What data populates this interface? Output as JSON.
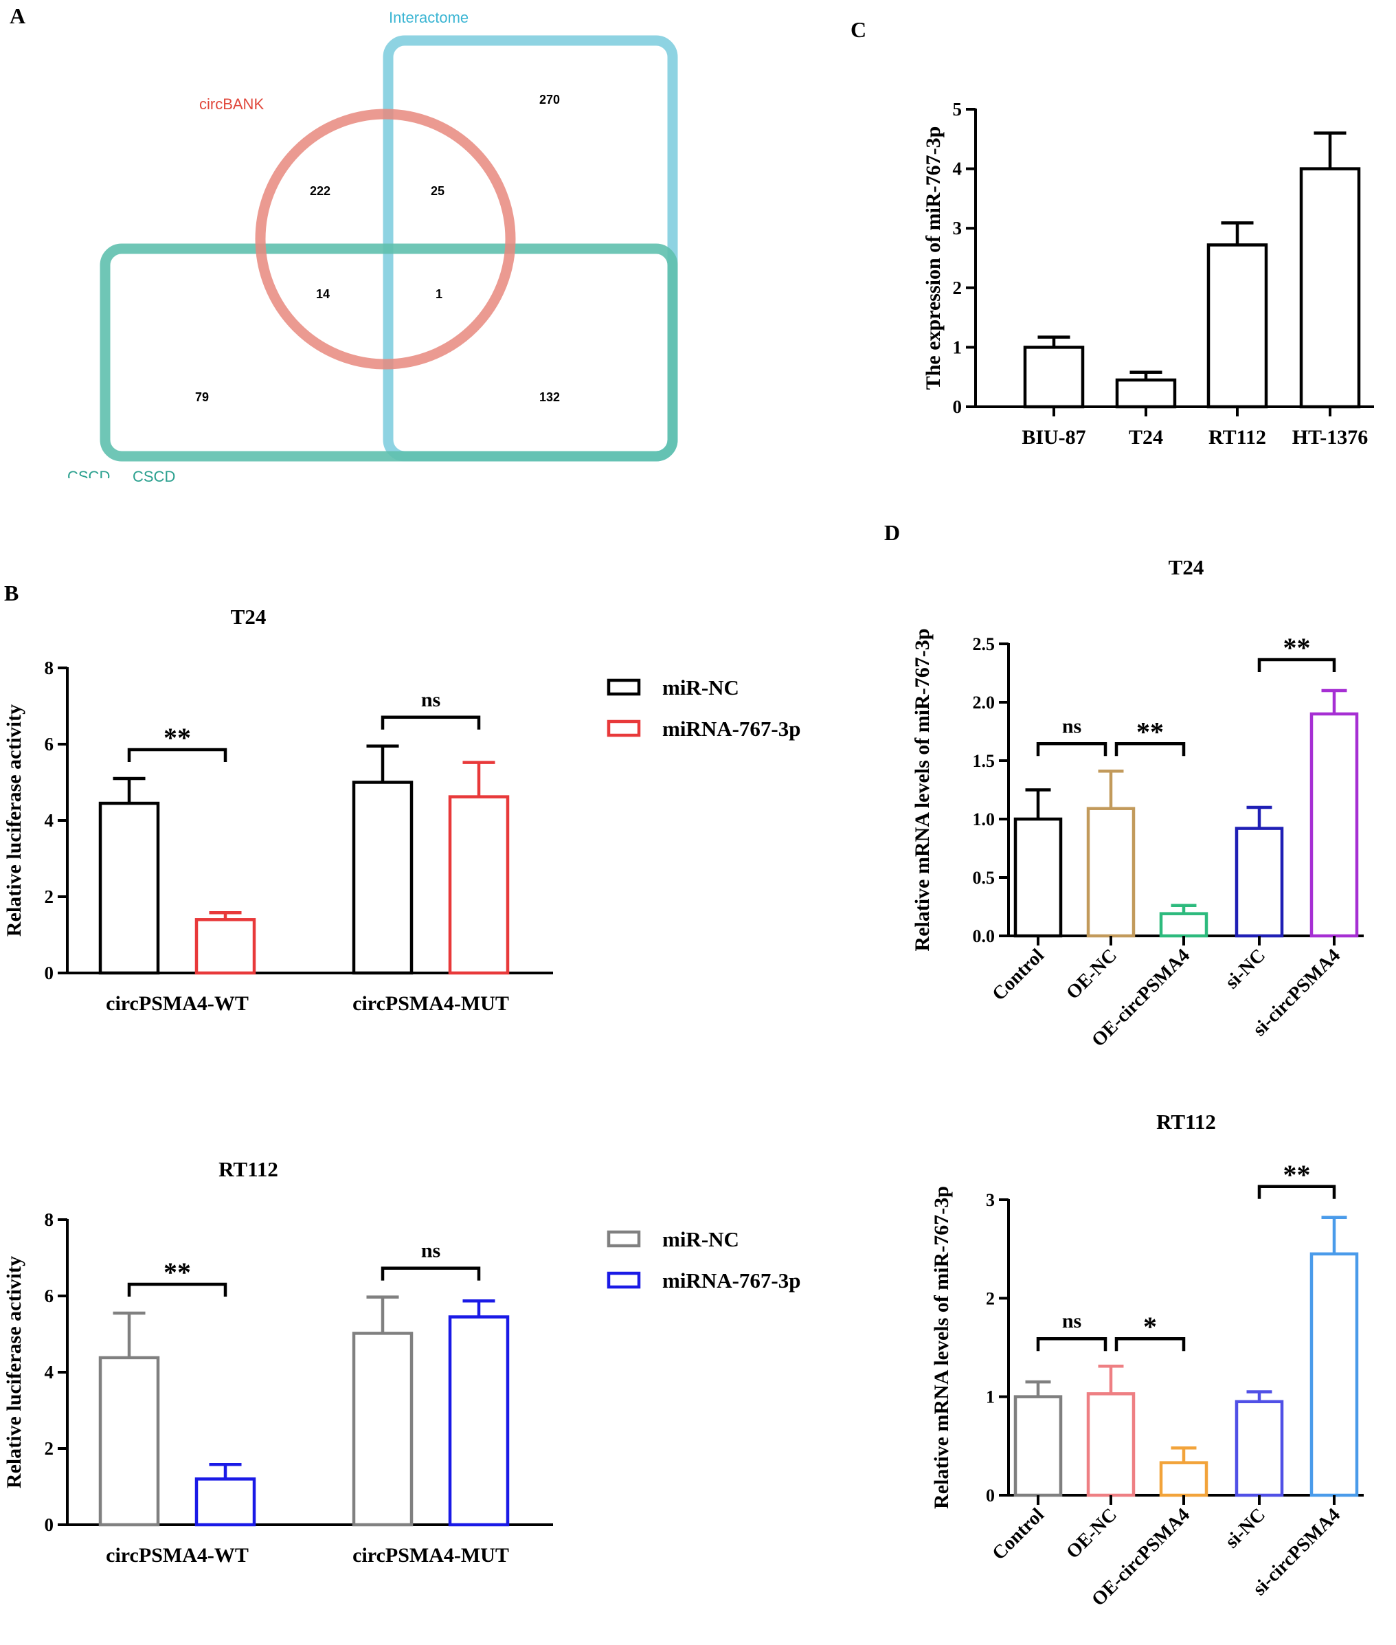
{
  "panels": {
    "A": "A",
    "B": "B",
    "C": "C",
    "D": "D"
  },
  "colors": {
    "circbank": "#E8887E",
    "interactome": "#8ED3E2",
    "cscd": "#5FC0AE",
    "circbank_label": "#E0473B",
    "interactome_label": "#3BB5D3",
    "cscd_label": "#2AA08E"
  },
  "venn": {
    "labels": {
      "circbank": "circBANK",
      "interactome": "Interactome",
      "cscd": "CSCD",
      "cscd_ghost": "CSCD"
    },
    "counts": {
      "interactome_only": "270",
      "circbank_only": "222",
      "circbank_interactome": "25",
      "circbank_cscd": "14",
      "all_three": "1",
      "cscd_only": "79",
      "interactome_cscd": "132"
    }
  },
  "chart_data": [
    {
      "id": "C",
      "type": "bar",
      "title": "",
      "ylabel": "The expression of miR-767-3p",
      "ylim": [
        0,
        5
      ],
      "yticks": [
        0,
        1,
        2,
        3,
        4,
        5
      ],
      "categories": [
        "BIU-87",
        "T24",
        "RT112",
        "HT-1376"
      ],
      "values": [
        1.0,
        0.45,
        2.72,
        4.0
      ],
      "errors": [
        0.17,
        0.13,
        0.37,
        0.6
      ],
      "colors": [
        "#000000",
        "#000000",
        "#000000",
        "#000000"
      ]
    },
    {
      "id": "B-T24",
      "type": "bar",
      "title": "T24",
      "ylabel": "Relative luciferase activity",
      "ylim": [
        0,
        8
      ],
      "yticks": [
        0,
        2,
        4,
        6,
        8
      ],
      "categories": [
        "circPSMA4-WT",
        "circPSMA4-MUT"
      ],
      "series": [
        {
          "name": "miR-NC",
          "color": "#000000",
          "values": [
            4.45,
            5.0
          ],
          "errors": [
            0.65,
            0.95
          ]
        },
        {
          "name": "miRNA-767-3p",
          "color": "#E8393A",
          "values": [
            1.4,
            4.62
          ],
          "errors": [
            0.18,
            0.9
          ]
        }
      ],
      "significance": [
        "**",
        "ns"
      ]
    },
    {
      "id": "B-RT112",
      "type": "bar",
      "title": "RT112",
      "ylabel": "Relative luciferase activity",
      "ylim": [
        0,
        8
      ],
      "yticks": [
        0,
        2,
        4,
        6,
        8
      ],
      "categories": [
        "circPSMA4-WT",
        "circPSMA4-MUT"
      ],
      "series": [
        {
          "name": "miR-NC",
          "color": "#808080",
          "values": [
            4.38,
            5.02
          ],
          "errors": [
            1.17,
            0.95
          ]
        },
        {
          "name": "miRNA-767-3p",
          "color": "#1A1AE6",
          "values": [
            1.2,
            5.45
          ],
          "errors": [
            0.38,
            0.42
          ]
        }
      ],
      "significance": [
        "**",
        "ns"
      ]
    },
    {
      "id": "D-T24",
      "type": "bar",
      "title": "T24",
      "ylabel": "Relative mRNA levels of miR-767-3p",
      "ylim": [
        0,
        2.5
      ],
      "yticks": [
        "0.0",
        "0.5",
        "1.0",
        "1.5",
        "2.0",
        "2.5"
      ],
      "categories": [
        "Control",
        "OE-NC",
        "OE-circPSMA4",
        "si-NC",
        "si-circPSMA4"
      ],
      "values": [
        1.0,
        1.09,
        0.19,
        0.92,
        1.9
      ],
      "errors": [
        0.25,
        0.32,
        0.07,
        0.18,
        0.2
      ],
      "colors": [
        "#000000",
        "#C29A5B",
        "#2DBA7D",
        "#1F1FB5",
        "#A62FD3"
      ],
      "significance": [
        {
          "from": 0,
          "to": 1,
          "label": "ns"
        },
        {
          "from": 1,
          "to": 2,
          "label": "**"
        },
        {
          "from": 3,
          "to": 4,
          "label": "**"
        }
      ]
    },
    {
      "id": "D-RT112",
      "type": "bar",
      "title": "RT112",
      "ylabel": "Relative mRNA levels of miR-767-3p",
      "ylim": [
        0,
        3
      ],
      "yticks": [
        "0",
        "1",
        "2",
        "3"
      ],
      "categories": [
        "Control",
        "OE-NC",
        "OE-circPSMA4",
        "si-NC",
        "si-circPSMA4"
      ],
      "values": [
        1.0,
        1.03,
        0.33,
        0.95,
        2.45
      ],
      "errors": [
        0.15,
        0.28,
        0.15,
        0.1,
        0.37
      ],
      "colors": [
        "#7F7F7F",
        "#EE7F83",
        "#F2A33A",
        "#5050E6",
        "#4A9BEA"
      ],
      "significance": [
        {
          "from": 0,
          "to": 1,
          "label": "ns"
        },
        {
          "from": 1,
          "to": 2,
          "label": "*"
        },
        {
          "from": 3,
          "to": 4,
          "label": "**"
        }
      ]
    }
  ]
}
